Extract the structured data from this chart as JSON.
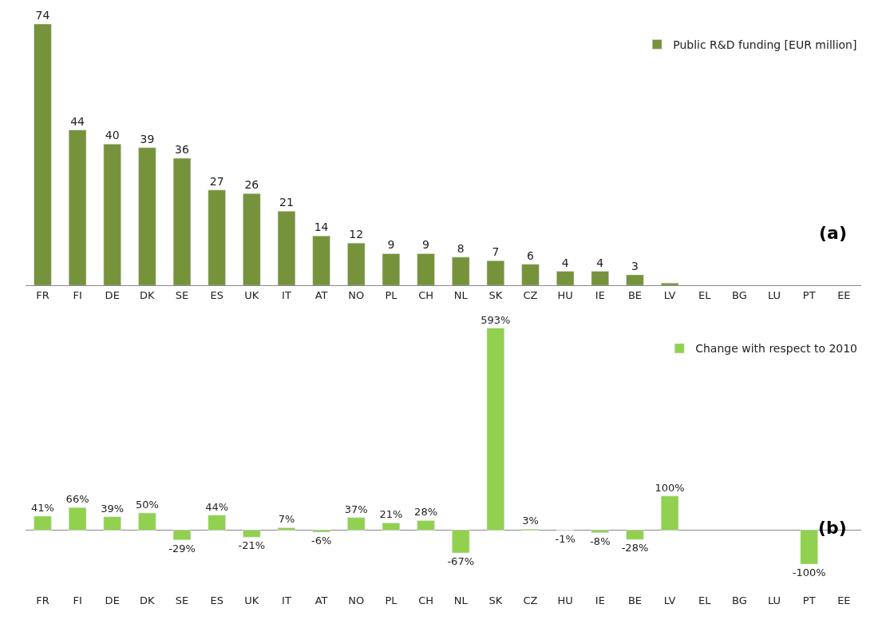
{
  "chart_data": [
    {
      "type": "bar",
      "categories": [
        "FR",
        "FI",
        "DE",
        "DK",
        "SE",
        "ES",
        "UK",
        "IT",
        "AT",
        "NO",
        "PL",
        "CH",
        "NL",
        "SK",
        "CZ",
        "HU",
        "IE",
        "BE",
        "LV",
        "EL",
        "BG",
        "LU",
        "PT",
        "EE"
      ],
      "series": [
        {
          "name": "Public R&D funding [EUR million]",
          "color": "#76933c",
          "values": [
            74,
            44,
            40,
            39,
            36,
            27,
            26,
            21,
            14,
            12,
            9,
            9,
            8,
            7,
            6,
            4,
            4,
            3,
            0.7,
            null,
            null,
            null,
            null,
            null
          ],
          "value_labels": [
            "74",
            "44",
            "40",
            "39",
            "36",
            "27",
            "26",
            "21",
            "14",
            "12",
            "9",
            "9",
            "8",
            "7",
            "6",
            "4",
            "4",
            "3",
            null,
            null,
            null,
            null,
            null,
            null
          ]
        }
      ],
      "legend": "top right",
      "annotations": [
        "(a)"
      ]
    },
    {
      "type": "bar",
      "categories": [
        "FR",
        "FI",
        "DE",
        "DK",
        "SE",
        "ES",
        "UK",
        "IT",
        "AT",
        "NO",
        "PL",
        "CH",
        "NL",
        "SK",
        "CZ",
        "HU",
        "IE",
        "BE",
        "LV",
        "EL",
        "BG",
        "LU",
        "PT",
        "EE"
      ],
      "series": [
        {
          "name": "Change with respect to 2010",
          "color": "#92d050",
          "values": [
            41,
            66,
            39,
            50,
            -29,
            44,
            -21,
            7,
            -6,
            37,
            21,
            28,
            -67,
            593,
            3,
            -1,
            -8,
            -28,
            100,
            null,
            null,
            null,
            -100,
            null
          ],
          "value_labels": [
            "41%",
            "66%",
            "39%",
            "50%",
            "-29%",
            "44%",
            "-21%",
            "7%",
            "-6%",
            "37%",
            "21%",
            "28%",
            "-67%",
            "593%",
            "3%",
            "-1%",
            "-8%",
            "-28%",
            "100%",
            null,
            null,
            null,
            "-100%",
            null
          ]
        }
      ],
      "legend": "top right",
      "annotations": [
        "(b)"
      ]
    }
  ]
}
